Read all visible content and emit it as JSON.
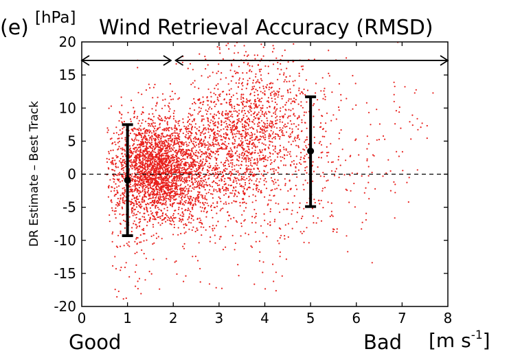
{
  "chart_data": {
    "type": "scatter",
    "panel_label": "(e)",
    "y_unit": "[hPa]",
    "title": "Wind Retrieval Accuracy (RMSD)",
    "ylabel": "DR Estimate  –  Best Track",
    "xlabel_left": "Good",
    "xlabel_right": "Bad",
    "x_unit_main": "[m s",
    "x_unit_sup": "-1",
    "x_unit_end": "]",
    "xlim": [
      0,
      8
    ],
    "ylim": [
      -20,
      20
    ],
    "xticks": [
      "0",
      "1",
      "2",
      "3",
      "4",
      "5",
      "6",
      "7",
      "8"
    ],
    "yticks": [
      "20",
      "15",
      "10",
      "5",
      "0",
      "-5",
      "-10",
      "-15",
      "-20"
    ],
    "zero_line": true,
    "arrow_ranges": [
      [
        0,
        1.95
      ],
      [
        2.05,
        8
      ]
    ],
    "arrow_y": 17.2,
    "error_bars": [
      {
        "x": 1.0,
        "mean": -0.9,
        "lower": -9.3,
        "upper": 7.5
      },
      {
        "x": 5.0,
        "mean": 3.5,
        "lower": -4.9,
        "upper": 11.7
      }
    ],
    "point_color": "#e8201c",
    "scatter_clusters": [
      {
        "n": 2300,
        "x": 1.65,
        "sx": 0.45,
        "y": 0.5,
        "sy": 3.8
      },
      {
        "n": 1300,
        "x": 2.9,
        "sx": 0.75,
        "y": 3.0,
        "sy": 5.0
      },
      {
        "n": 700,
        "x": 3.9,
        "sx": 0.6,
        "y": 9.0,
        "sy": 5.5
      },
      {
        "n": 250,
        "x": 4.8,
        "sx": 0.9,
        "y": 2.0,
        "sy": 7.0
      },
      {
        "n": 220,
        "x": 1.0,
        "sx": 0.25,
        "y": -4.0,
        "sy": 7.5
      },
      {
        "n": 120,
        "x": 3.2,
        "sx": 1.0,
        "y": -8.0,
        "sy": 5.0
      },
      {
        "n": 90,
        "x": 6.2,
        "sx": 1.0,
        "y": 6.0,
        "sy": 6.0
      }
    ]
  }
}
